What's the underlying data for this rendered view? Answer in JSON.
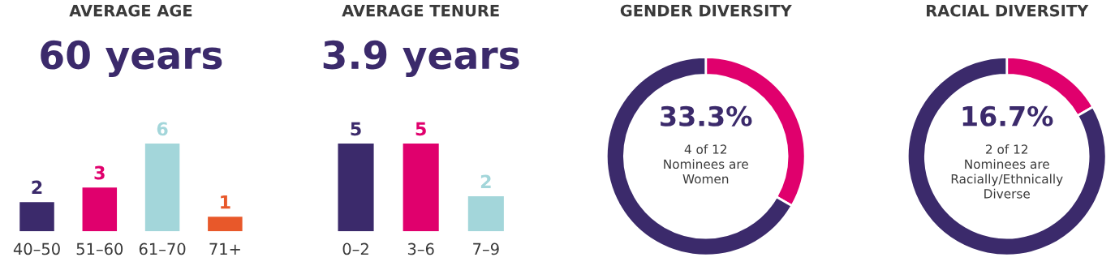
{
  "chart_data": [
    {
      "type": "bar",
      "title": "AVERAGE AGE",
      "subtitle": "60 years",
      "categories": [
        "40–50",
        "51–60",
        "61–70",
        "71+"
      ],
      "values": [
        2,
        3,
        6,
        1
      ],
      "colors": [
        "#3b2a6b",
        "#e0006d",
        "#a3d6da",
        "#e8582a"
      ],
      "data_labels": true
    },
    {
      "type": "bar",
      "title": "AVERAGE TENURE",
      "subtitle": "3.9 years",
      "categories": [
        "0–2",
        "3–6",
        "7–9"
      ],
      "values": [
        5,
        5,
        2
      ],
      "colors": [
        "#3b2a6b",
        "#e0006d",
        "#a3d6da"
      ],
      "data_labels": true
    },
    {
      "type": "donut",
      "title": "GENDER DIVERSITY",
      "categories": [
        null,
        null
      ],
      "values": [
        33.3,
        66.7
      ],
      "colors": [
        "#e0006d",
        "#3b2a6b"
      ],
      "annotations": [
        "33.3%",
        "4 of 12\nNominees are\nWomen"
      ]
    },
    {
      "type": "donut",
      "title": "RACIAL DIVERSITY",
      "categories": [
        null,
        null
      ],
      "values": [
        16.7,
        83.3
      ],
      "colors": [
        "#e0006d",
        "#3b2a6b"
      ],
      "annotations": [
        "16.7%",
        "2 of 12\nNominees are\nRacially/Ethnically\nDiverse"
      ]
    }
  ]
}
